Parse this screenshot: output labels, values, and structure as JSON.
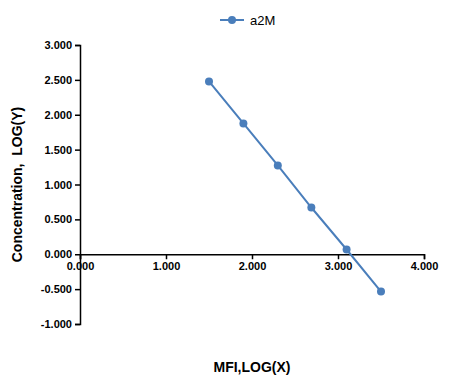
{
  "chart_data": {
    "type": "line",
    "x_label": "MFI,LOG(X)",
    "y_label": "Concentration,  LOG(Y)",
    "x": [
      1.5,
      1.9,
      2.3,
      2.69,
      3.1,
      3.5
    ],
    "series": [
      {
        "name": "a2M",
        "color": "#4a7ebb",
        "marker": "circle",
        "line_style": "solid",
        "values": [
          2.477,
          1.875,
          1.273,
          0.67,
          0.068,
          -0.535
        ]
      }
    ],
    "xlim": [
      0,
      4
    ],
    "xticks": [
      {
        "value": 0,
        "label": "0.000"
      },
      {
        "value": 1,
        "label": "1.000"
      },
      {
        "value": 2,
        "label": "2.000"
      },
      {
        "value": 3,
        "label": "3.000"
      },
      {
        "value": 4,
        "label": "4.000"
      }
    ],
    "ylim": [
      -1,
      3
    ],
    "yticks": [
      {
        "value": -1,
        "label": "-1.000"
      },
      {
        "value": -0.5,
        "label": "-0.500"
      },
      {
        "value": 0,
        "label": "0.000"
      },
      {
        "value": 0.5,
        "label": "0.500"
      },
      {
        "value": 1,
        "label": "1.000"
      },
      {
        "value": 1.5,
        "label": "1.500"
      },
      {
        "value": 2,
        "label": "2.000"
      },
      {
        "value": 2.5,
        "label": "2.500"
      },
      {
        "value": 3,
        "label": "3.000"
      }
    ],
    "grid": false,
    "legend": "top"
  }
}
